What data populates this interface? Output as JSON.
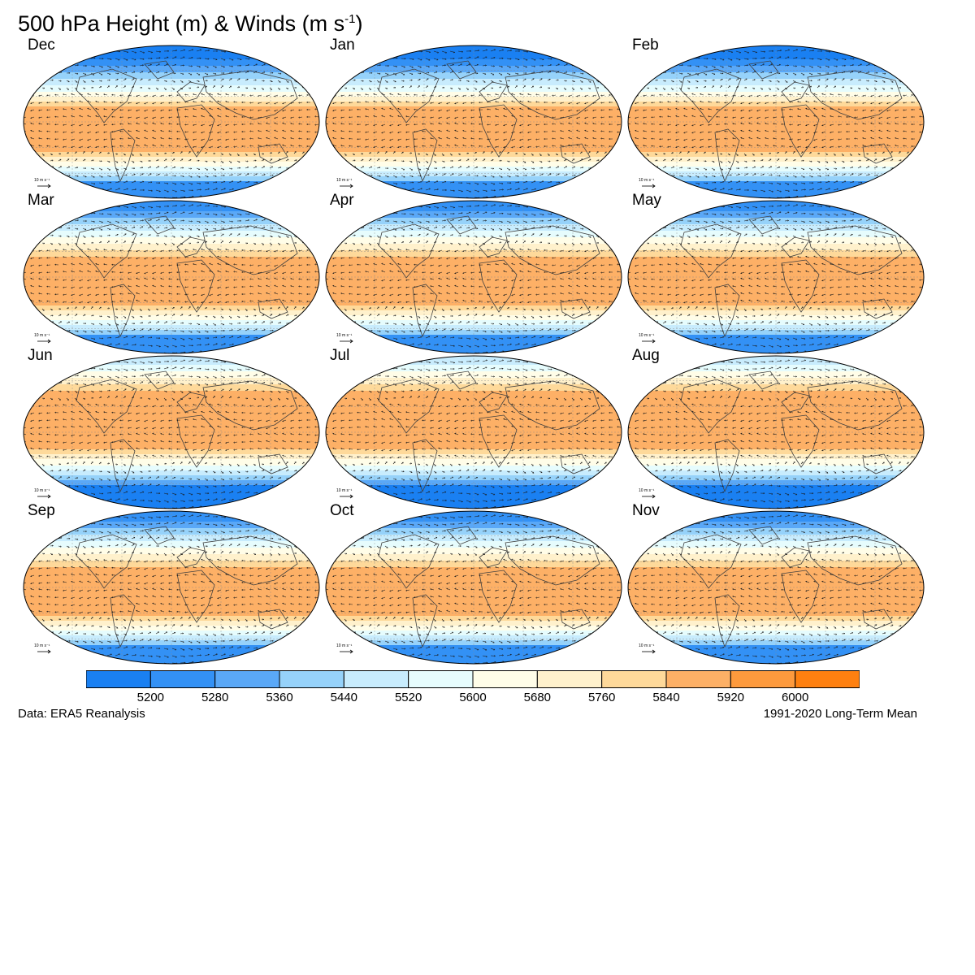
{
  "title": {
    "text": "500 hPa Height (m) & Winds (m s",
    "superscript": "-1",
    "closing": ")"
  },
  "panels": [
    {
      "label": "Dec",
      "ref_vector": "10 m s⁻¹"
    },
    {
      "label": "Jan",
      "ref_vector": "10 m s⁻¹"
    },
    {
      "label": "Feb",
      "ref_vector": "10 m s⁻¹"
    },
    {
      "label": "Mar",
      "ref_vector": "10 m s⁻¹"
    },
    {
      "label": "Apr",
      "ref_vector": "10 m s⁻¹"
    },
    {
      "label": "May",
      "ref_vector": "10 m s⁻¹"
    },
    {
      "label": "Jun",
      "ref_vector": "10 m s⁻¹"
    },
    {
      "label": "Jul",
      "ref_vector": "10 m s⁻¹"
    },
    {
      "label": "Aug",
      "ref_vector": "10 m s⁻¹"
    },
    {
      "label": "Sep",
      "ref_vector": "10 m s⁻¹"
    },
    {
      "label": "Oct",
      "ref_vector": "10 m s⁻¹"
    },
    {
      "label": "Nov",
      "ref_vector": "10 m s⁻¹"
    }
  ],
  "colorbar": {
    "colors": [
      "#1a80f2",
      "#3391f5",
      "#5aa8f7",
      "#96d2fa",
      "#c8ecfd",
      "#e6fcfd",
      "#fffde8",
      "#fff1cc",
      "#fed99a",
      "#fdb066",
      "#fd9a3d",
      "#fe8010"
    ],
    "tick_labels": [
      "5200",
      "5280",
      "5360",
      "5440",
      "5520",
      "5600",
      "5680",
      "5760",
      "5840",
      "5920",
      "6000"
    ]
  },
  "footer": {
    "left": "Data: ERA5 Reanalysis",
    "right": "1991-2020 Long-Term Mean"
  }
}
